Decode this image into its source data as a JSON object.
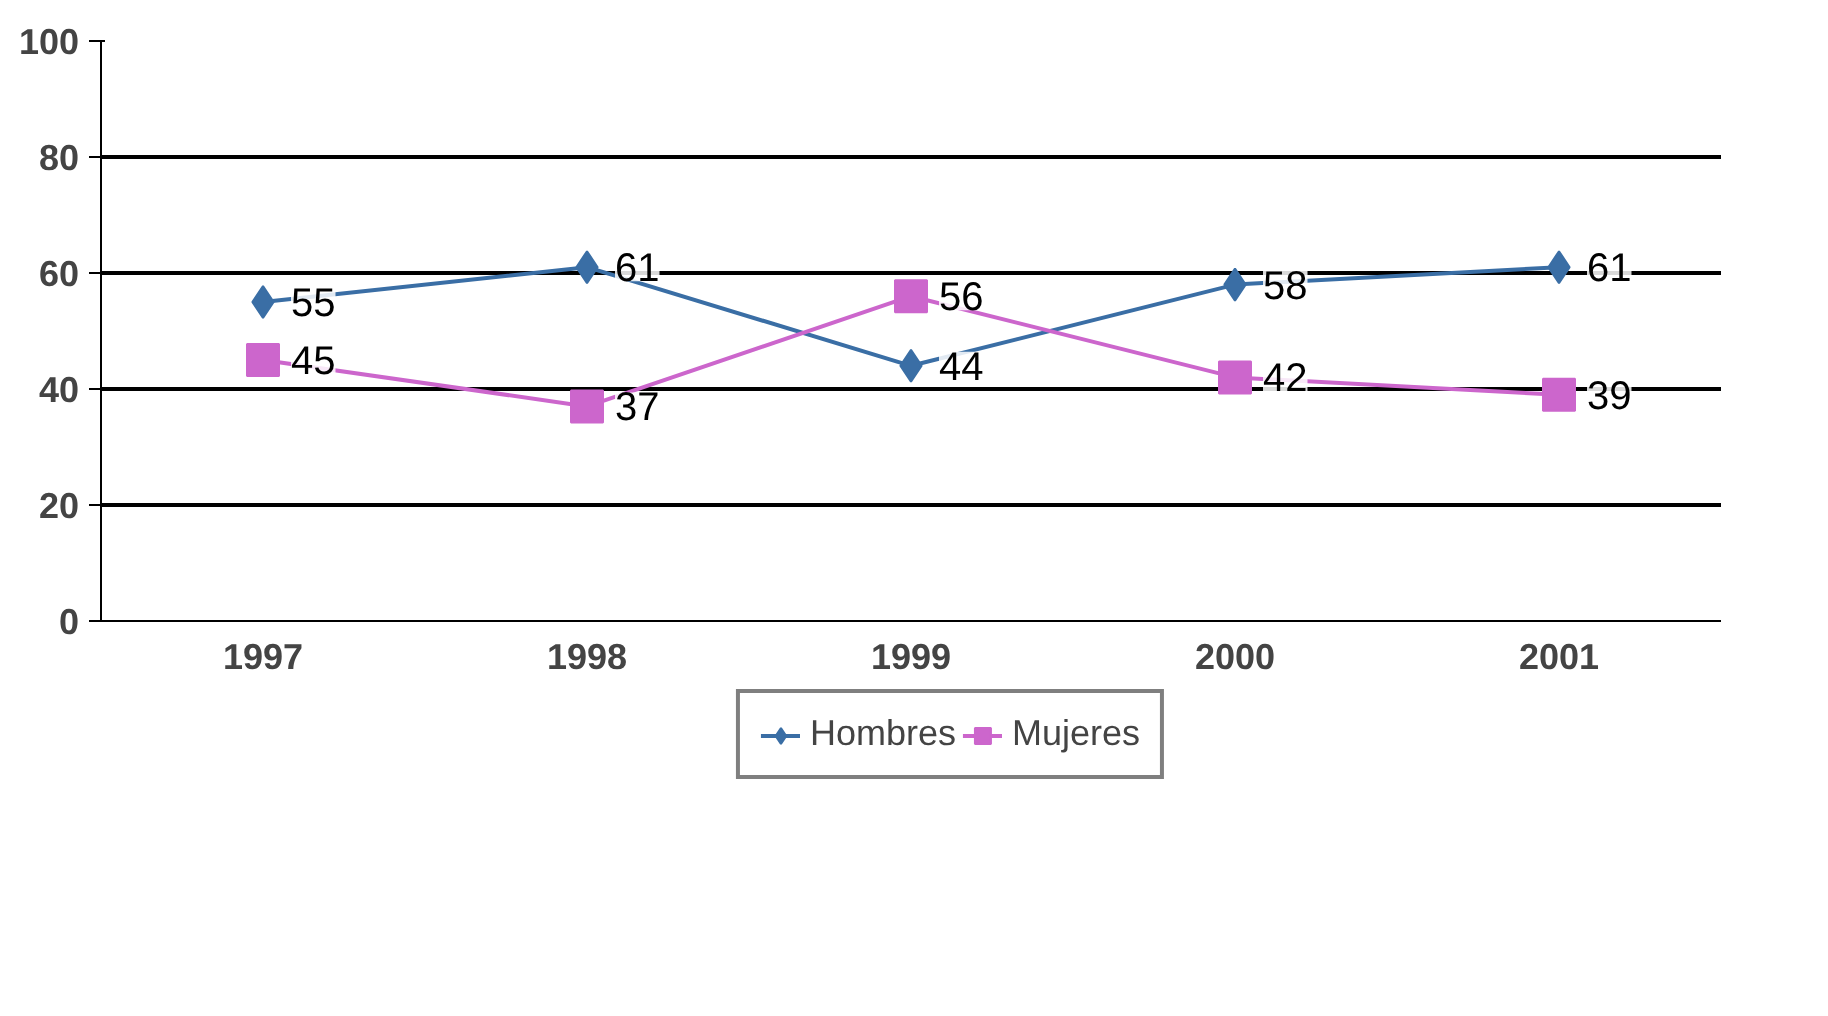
{
  "chart_data": {
    "type": "line",
    "categories": [
      "1997",
      "1998",
      "1999",
      "2000",
      "2001"
    ],
    "series": [
      {
        "name": "Hombres",
        "color": "#3a6ea5",
        "marker": "diamond",
        "values": [
          55,
          61,
          44,
          58,
          61
        ]
      },
      {
        "name": "Mujeres",
        "color": "#cc66cc",
        "marker": "square",
        "values": [
          45,
          37,
          56,
          42,
          39
        ]
      }
    ],
    "ylim": [
      0,
      100
    ],
    "yticks": [
      0,
      20,
      40,
      60,
      80,
      100
    ],
    "grid": "y",
    "legend": "bottom",
    "data_labels": true
  }
}
